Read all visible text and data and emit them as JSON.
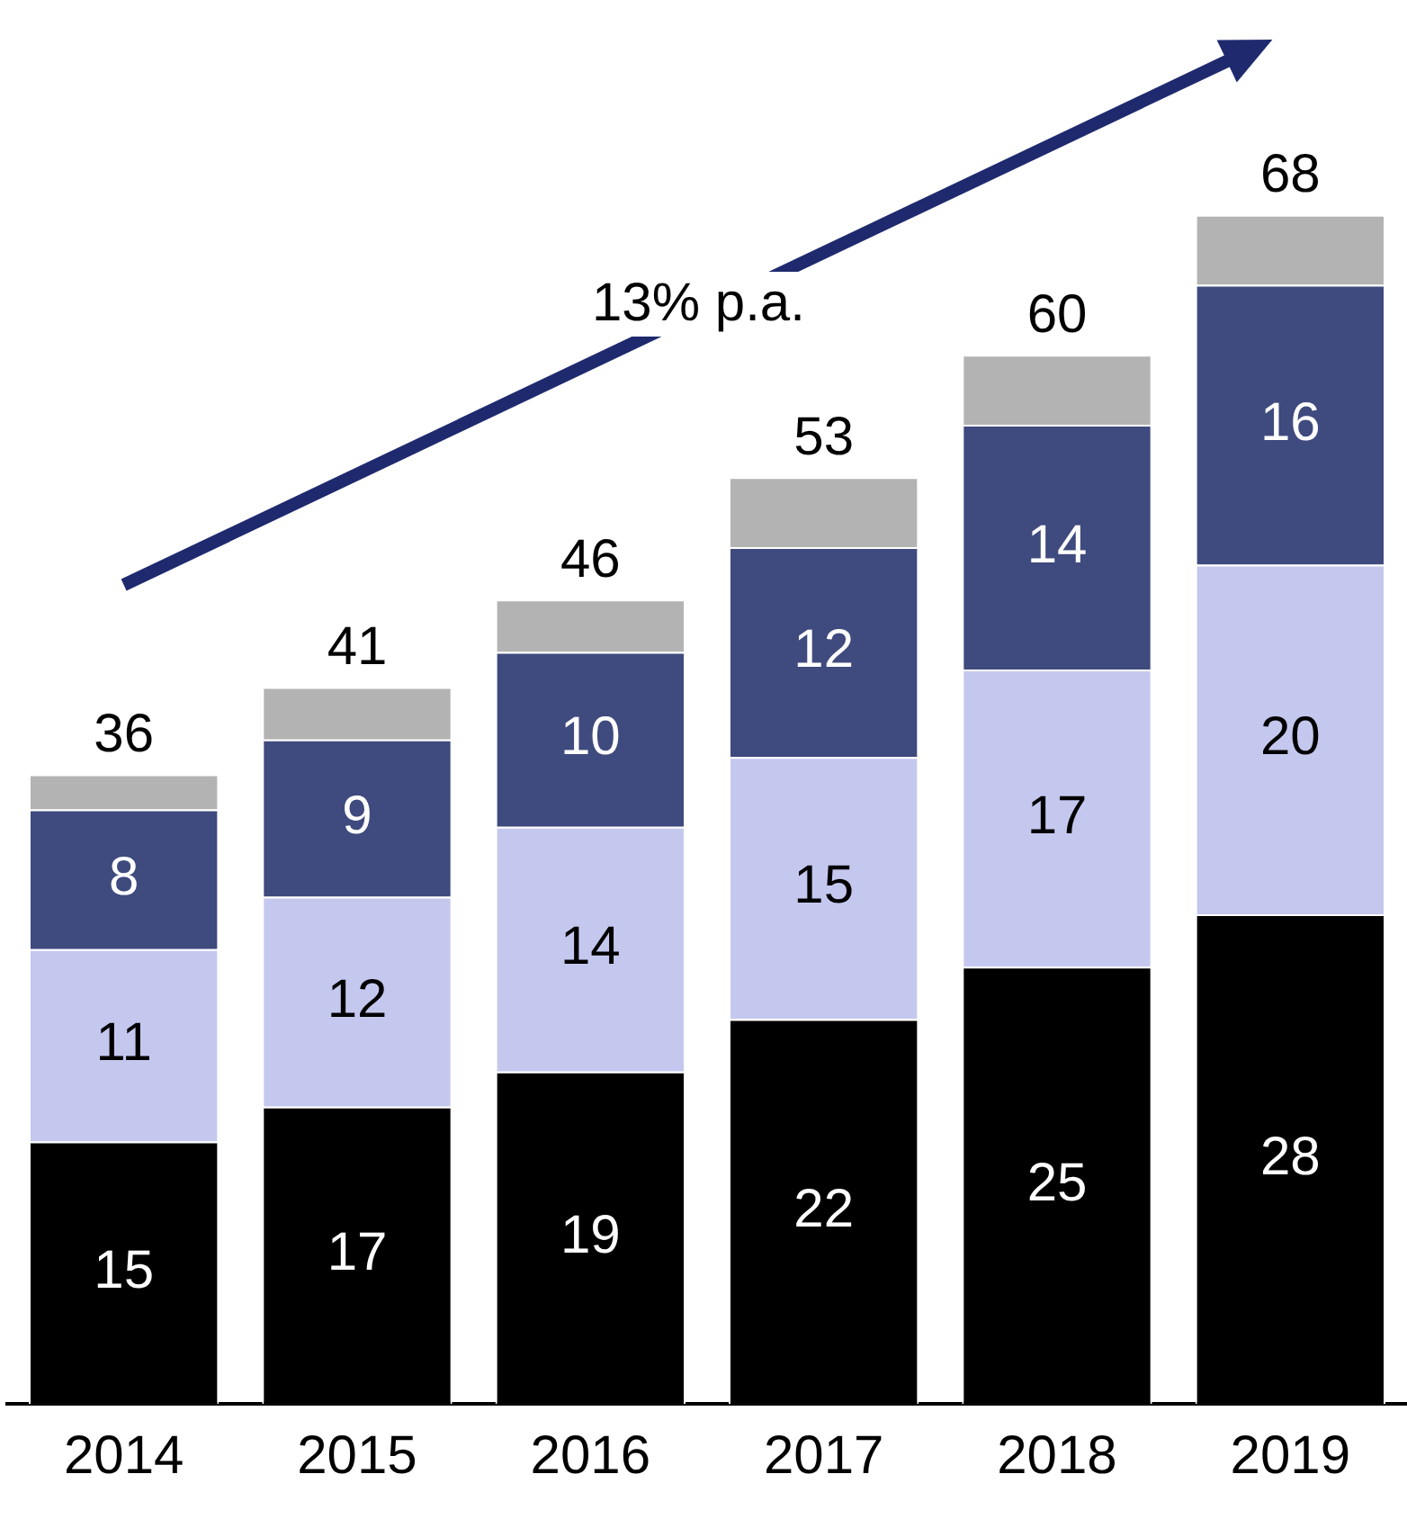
{
  "chart_data": {
    "type": "bar",
    "stacked": true,
    "categories": [
      "2014",
      "2015",
      "2016",
      "2017",
      "2018",
      "2019"
    ],
    "tick_labels": "x",
    "grid": false,
    "legend": false,
    "series": [
      {
        "color": "#000000",
        "values": [
          15,
          17,
          19,
          22,
          25,
          28
        ],
        "value_labels": [
          "15",
          "17",
          "19",
          "22",
          "25",
          "28"
        ]
      },
      {
        "color": "#c5c8ee",
        "values": [
          11,
          12,
          14,
          15,
          17,
          20
        ],
        "value_labels": [
          "11",
          "12",
          "14",
          "15",
          "17",
          "20"
        ]
      },
      {
        "color": "#3f4a7e",
        "values": [
          8,
          9,
          10,
          12,
          14,
          16
        ],
        "value_labels": [
          "8",
          "9",
          "10",
          "12",
          "14",
          "16"
        ]
      },
      {
        "color": "#b3b3b3",
        "values": [
          2,
          3,
          3,
          4,
          4,
          4
        ],
        "value_labels": [
          null,
          null,
          null,
          null,
          null,
          null
        ]
      }
    ],
    "totals": [
      "36",
      "41",
      "46",
      "53",
      "60",
      "68"
    ],
    "annotations": [
      "13% p.a."
    ]
  }
}
